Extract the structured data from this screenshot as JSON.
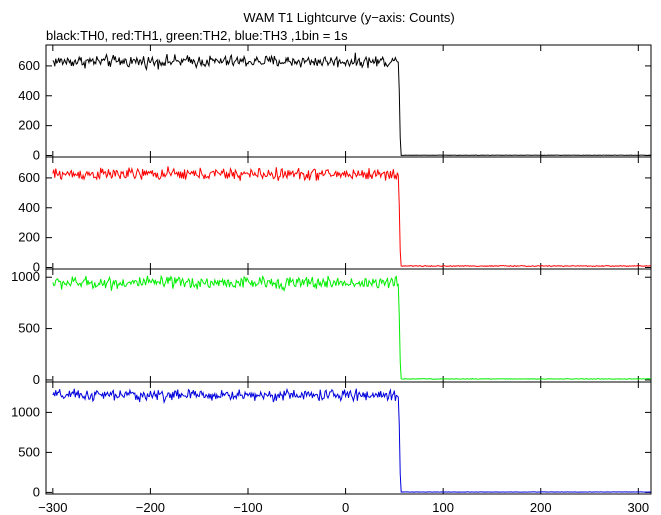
{
  "chart_data": {
    "type": "line",
    "title": "WAM T1 Lightcurve (y−axis: Counts)",
    "subtitle": "black:TH0, red:TH1, green:TH2, blue:TH3 ,1bin = 1s",
    "xlim": [
      -307,
      313
    ],
    "x_ticks": [
      -300,
      -200,
      -100,
      0,
      100,
      200,
      300
    ],
    "x_tick_labels": [
      "−300",
      "−200",
      "−100",
      "0",
      "100",
      "200",
      "300"
    ],
    "x_step": 1,
    "grid": false,
    "panels": [
      {
        "name": "TH0",
        "color": "#000000",
        "ylim": [
          -10,
          740
        ],
        "y_ticks": [
          0,
          200,
          400,
          600
        ],
        "y_tick_labels": [
          "0",
          "200",
          "400",
          "600"
        ],
        "series": {
          "x_start": -300,
          "x_end": 313,
          "pre_level": 630,
          "pre_noise": 20,
          "drop_x": 55,
          "drop_values": [
            440,
            120
          ],
          "post_level": 2,
          "post_noise": 1
        }
      },
      {
        "name": "TH1",
        "color": "#ff0000",
        "ylim": [
          -10,
          740
        ],
        "y_ticks": [
          0,
          200,
          400,
          600
        ],
        "y_tick_labels": [
          "0",
          "200",
          "400",
          "600"
        ],
        "series": {
          "x_start": -300,
          "x_end": 313,
          "pre_level": 625,
          "pre_noise": 20,
          "drop_x": 55,
          "drop_values": [
            420,
            110
          ],
          "post_level": 10,
          "post_noise": 3
        }
      },
      {
        "name": "TH2",
        "color": "#00ee00",
        "ylim": [
          -20,
          1080
        ],
        "y_ticks": [
          0,
          500,
          1000
        ],
        "y_tick_labels": [
          "0",
          "500",
          "1000"
        ],
        "series": {
          "x_start": -300,
          "x_end": 313,
          "pre_level": 945,
          "pre_noise": 30,
          "drop_x": 55,
          "drop_values": [
            630,
            180
          ],
          "post_level": 10,
          "post_noise": 3
        }
      },
      {
        "name": "TH3",
        "color": "#0000dd",
        "ylim": [
          -20,
          1380
        ],
        "y_ticks": [
          0,
          500,
          1000
        ],
        "y_tick_labels": [
          "0",
          "500",
          "1000"
        ],
        "series": {
          "x_start": -300,
          "x_end": 313,
          "pre_level": 1215,
          "pre_noise": 35,
          "drop_x": 55,
          "drop_values": [
            860,
            230
          ],
          "post_level": 5,
          "post_noise": 2
        }
      }
    ]
  }
}
